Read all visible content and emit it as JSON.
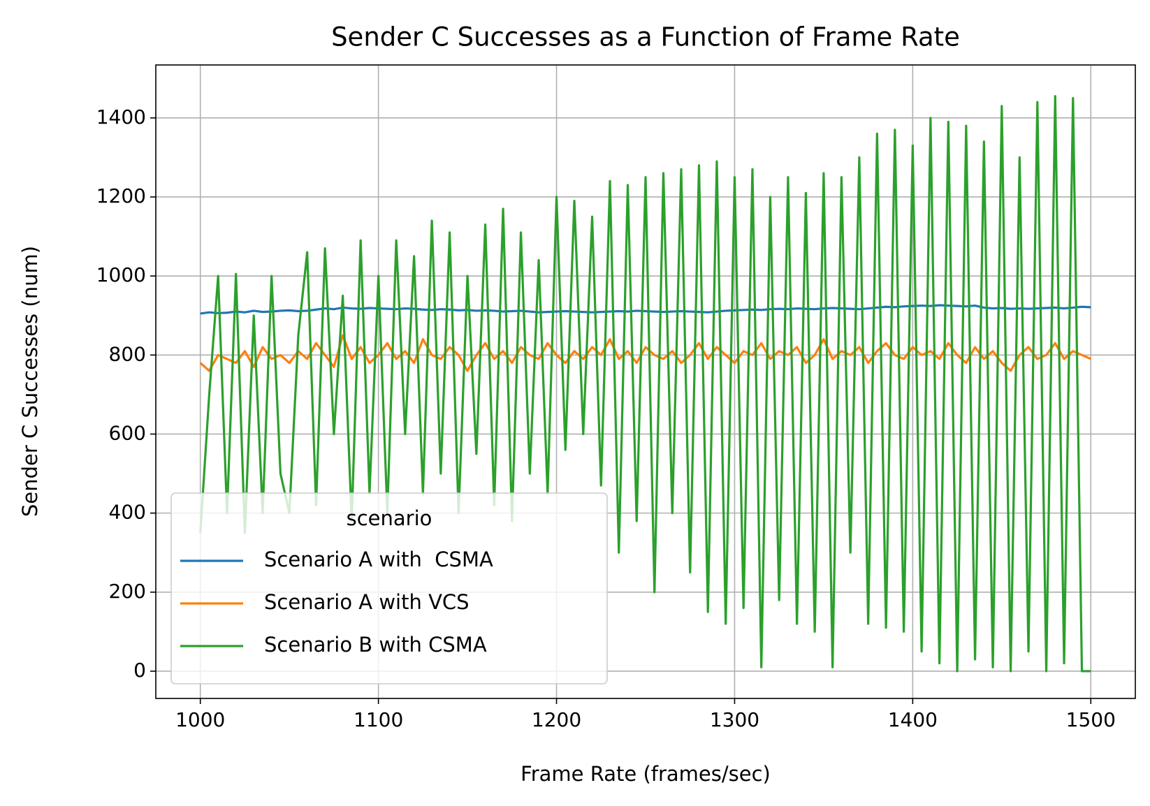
{
  "chart_data": {
    "type": "line",
    "title": "Sender C Successes as a Function of Frame Rate",
    "xlabel": "Frame Rate (frames/sec)",
    "ylabel": "Sender C Successes (num)",
    "x": [
      1000,
      1005,
      1010,
      1015,
      1020,
      1025,
      1030,
      1035,
      1040,
      1045,
      1050,
      1055,
      1060,
      1065,
      1070,
      1075,
      1080,
      1085,
      1090,
      1095,
      1100,
      1105,
      1110,
      1115,
      1120,
      1125,
      1130,
      1135,
      1140,
      1145,
      1150,
      1155,
      1160,
      1165,
      1170,
      1175,
      1180,
      1185,
      1190,
      1195,
      1200,
      1205,
      1210,
      1215,
      1220,
      1225,
      1230,
      1235,
      1240,
      1245,
      1250,
      1255,
      1260,
      1265,
      1270,
      1275,
      1280,
      1285,
      1290,
      1295,
      1300,
      1305,
      1310,
      1315,
      1320,
      1325,
      1330,
      1335,
      1340,
      1345,
      1350,
      1355,
      1360,
      1365,
      1370,
      1375,
      1380,
      1385,
      1390,
      1395,
      1400,
      1405,
      1410,
      1415,
      1420,
      1425,
      1430,
      1435,
      1440,
      1445,
      1450,
      1455,
      1460,
      1465,
      1470,
      1475,
      1480,
      1485,
      1490,
      1495,
      1500
    ],
    "series": [
      {
        "name": "Scenario A with  CSMA",
        "color": "#1f77b4",
        "values": [
          905,
          908,
          906,
          907,
          910,
          908,
          912,
          909,
          910,
          912,
          913,
          911,
          912,
          915,
          918,
          916,
          920,
          918,
          917,
          919,
          918,
          917,
          916,
          918,
          917,
          915,
          914,
          916,
          915,
          913,
          914,
          912,
          913,
          912,
          910,
          911,
          912,
          910,
          908,
          909,
          910,
          911,
          910,
          909,
          908,
          909,
          910,
          911,
          910,
          912,
          911,
          910,
          909,
          910,
          911,
          910,
          909,
          908,
          910,
          912,
          913,
          914,
          915,
          914,
          916,
          917,
          916,
          918,
          917,
          916,
          918,
          919,
          918,
          917,
          916,
          918,
          920,
          922,
          921,
          923,
          924,
          925,
          924,
          926,
          925,
          924,
          923,
          925,
          920,
          918,
          919,
          917,
          918,
          917,
          918,
          919,
          920,
          918,
          920,
          922,
          921
        ]
      },
      {
        "name": "Scenario A with VCS",
        "color": "#ff7f0e",
        "values": [
          780,
          760,
          800,
          790,
          780,
          810,
          770,
          820,
          790,
          800,
          780,
          810,
          790,
          830,
          800,
          770,
          850,
          790,
          820,
          780,
          800,
          830,
          790,
          810,
          780,
          840,
          800,
          790,
          820,
          800,
          760,
          800,
          830,
          790,
          810,
          780,
          820,
          800,
          790,
          830,
          800,
          780,
          810,
          790,
          820,
          800,
          840,
          790,
          810,
          780,
          820,
          800,
          790,
          810,
          780,
          800,
          830,
          790,
          820,
          800,
          780,
          810,
          800,
          830,
          790,
          810,
          800,
          820,
          780,
          800,
          840,
          790,
          810,
          800,
          820,
          780,
          810,
          830,
          800,
          790,
          820,
          800,
          810,
          790,
          830,
          800,
          780,
          820,
          790,
          810,
          780,
          760,
          800,
          820,
          790,
          800,
          830,
          790,
          810,
          800,
          790
        ]
      },
      {
        "name": "Scenario B with CSMA",
        "color": "#2ca02c",
        "values": [
          350,
          700,
          1000,
          400,
          1005,
          350,
          900,
          400,
          1000,
          500,
          400,
          850,
          1060,
          420,
          1070,
          600,
          950,
          380,
          1090,
          450,
          1000,
          400,
          1090,
          600,
          1050,
          450,
          1140,
          500,
          1110,
          400,
          1000,
          550,
          1130,
          420,
          1170,
          380,
          1110,
          500,
          1040,
          450,
          1200,
          560,
          1190,
          600,
          1150,
          470,
          1240,
          300,
          1230,
          380,
          1250,
          200,
          1260,
          400,
          1270,
          250,
          1280,
          150,
          1290,
          120,
          1250,
          160,
          1270,
          10,
          1200,
          180,
          1250,
          120,
          1210,
          100,
          1260,
          10,
          1250,
          300,
          1300,
          120,
          1360,
          110,
          1370,
          100,
          1330,
          50,
          1400,
          20,
          1390,
          0,
          1380,
          30,
          1340,
          10,
          1430,
          0,
          1300,
          50,
          1440,
          0,
          1455,
          20,
          1450,
          0,
          0
        ]
      }
    ],
    "xlim": [
      975,
      1525
    ],
    "ylim": [
      -69,
      1534
    ],
    "xticks": [
      1000,
      1100,
      1200,
      1300,
      1400,
      1500
    ],
    "yticks": [
      0,
      200,
      400,
      600,
      800,
      1000,
      1200,
      1400
    ],
    "grid": true,
    "legend_title": "scenario",
    "legend_loc": "lower left"
  }
}
